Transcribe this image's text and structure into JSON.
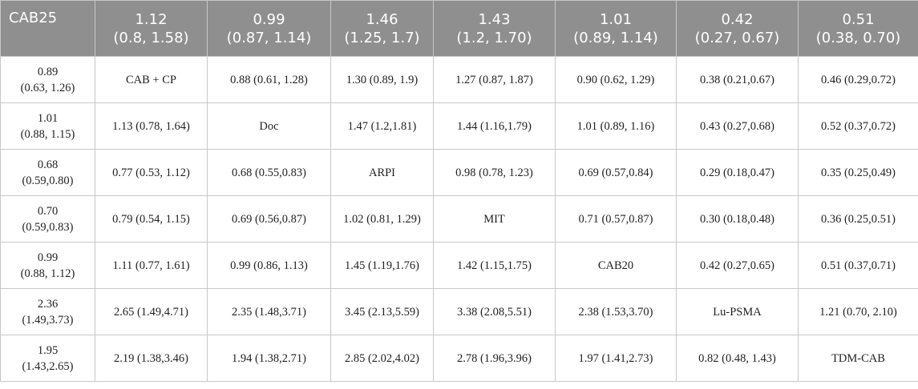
{
  "table": {
    "header": [
      [
        "CAB25"
      ],
      [
        "1.12",
        "(0.8, 1.58)"
      ],
      [
        "0.99",
        "(0.87, 1.14)"
      ],
      [
        "1.46",
        "(1.25, 1.7)"
      ],
      [
        "1.43",
        "(1.2, 1.70)"
      ],
      [
        "1.01",
        "(0.89, 1.14)"
      ],
      [
        "0.42",
        "(0.27, 0.67)"
      ],
      [
        "0.51",
        "(0.38, 0.70)"
      ]
    ],
    "rows": [
      [
        [
          "0.89",
          "(0.63, 1.26)"
        ],
        [
          "CAB + CP"
        ],
        [
          "0.88 (0.61, 1.28)"
        ],
        [
          "1.30 (0.89, 1.9)"
        ],
        [
          "1.27 (0.87, 1.87)"
        ],
        [
          "0.90 (0.62, 1.29)"
        ],
        [
          "0.38 (0.21,0.67)"
        ],
        [
          "0.46 (0.29,0.72)"
        ]
      ],
      [
        [
          "1.01",
          "(0.88, 1.15)"
        ],
        [
          "1.13 (0.78, 1.64)"
        ],
        [
          "Doc"
        ],
        [
          "1.47 (1.2,1.81)"
        ],
        [
          "1.44 (1.16,1.79)"
        ],
        [
          "1.01 (0.89, 1.16)"
        ],
        [
          "0.43 (0.27,0.68)"
        ],
        [
          "0.52 (0.37,0.72)"
        ]
      ],
      [
        [
          "0.68",
          "(0.59,0.80)"
        ],
        [
          "0.77 (0.53, 1.12)"
        ],
        [
          "0.68 (0.55,0.83)"
        ],
        [
          "ARPI"
        ],
        [
          "0.98 (0.78, 1.23)"
        ],
        [
          "0.69 (0.57,0.84)"
        ],
        [
          "0.29 (0.18,0.47)"
        ],
        [
          "0.35 (0.25,0.49)"
        ]
      ],
      [
        [
          "0.70",
          "(0.59,0.83)"
        ],
        [
          "0.79 (0.54, 1.15)"
        ],
        [
          "0.69 (0.56,0.87)"
        ],
        [
          "1.02 (0.81, 1.29)"
        ],
        [
          "MIT"
        ],
        [
          "0.71 (0.57,0.87)"
        ],
        [
          "0.30 (0.18,0.48)"
        ],
        [
          "0.36 (0.25,0.51)"
        ]
      ],
      [
        [
          "0.99",
          "(0.88, 1.12)"
        ],
        [
          "1.11 (0.77, 1.61)"
        ],
        [
          "0.99 (0.86, 1.13)"
        ],
        [
          "1.45 (1.19,1.76)"
        ],
        [
          "1.42 (1.15,1.75)"
        ],
        [
          "CAB20"
        ],
        [
          "0.42 (0.27,0.65)"
        ],
        [
          "0.51 (0.37,0.71)"
        ]
      ],
      [
        [
          "2.36",
          "(1.49,3.73)"
        ],
        [
          "2.65 (1.49,4.71)"
        ],
        [
          "2.35 (1.48,3.71)"
        ],
        [
          "3.45 (2.13,5.59)"
        ],
        [
          "3.38 (2.08,5.51)"
        ],
        [
          "2.38 (1.53,3.70)"
        ],
        [
          "Lu-PSMA"
        ],
        [
          "1.21 (0.70, 2.10)"
        ]
      ],
      [
        [
          "1.95",
          "(1.43,2.65)"
        ],
        [
          "2.19 (1.38,3.46)"
        ],
        [
          "1.94 (1.38,2.71)"
        ],
        [
          "2.85 (2.02,4.02)"
        ],
        [
          "2.78 (1.96,3.96)"
        ],
        [
          "1.97 (1.41,2.73)"
        ],
        [
          "0.82 (0.48, 1.43)"
        ],
        [
          "TDM-CAB"
        ]
      ]
    ]
  }
}
